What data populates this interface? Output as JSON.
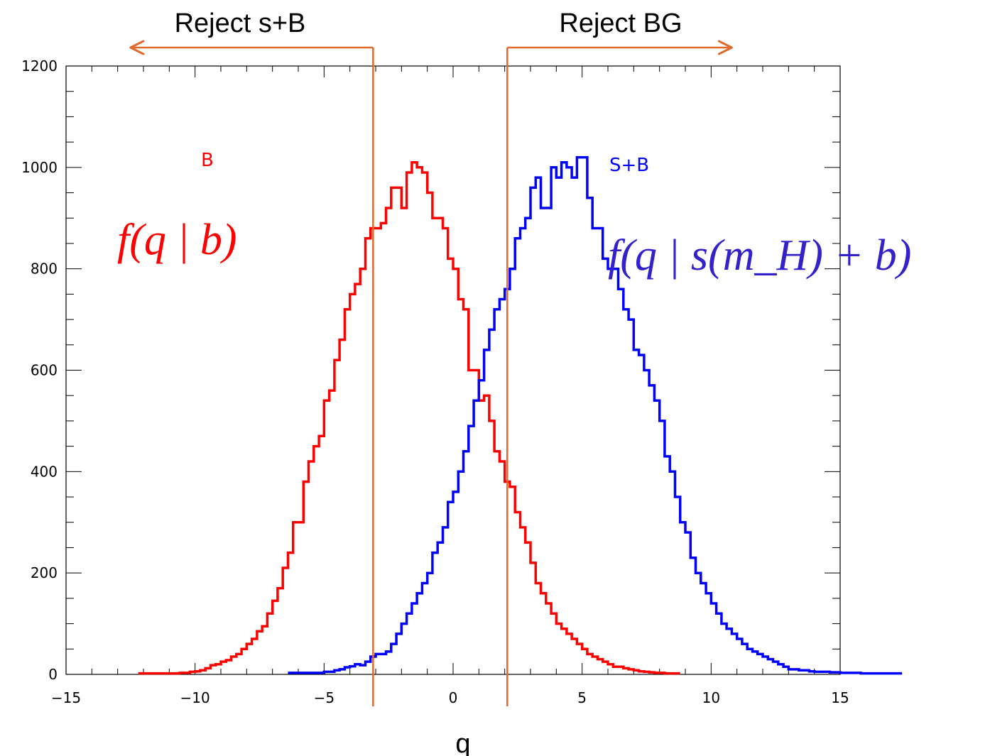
{
  "chart_data": {
    "type": "histogram",
    "xlabel": "q",
    "ylabel": "",
    "xlim": [
      -15,
      15
    ],
    "ylim": [
      0,
      1200
    ],
    "grid": false,
    "x_ticks": [
      -15,
      -10,
      -5,
      0,
      5,
      10,
      15
    ],
    "x_tick_labels": [
      "−15",
      "−10",
      "−5",
      "0",
      "5",
      "10",
      "15"
    ],
    "y_ticks": [
      0,
      200,
      400,
      600,
      800,
      1000,
      1200
    ],
    "y_tick_labels": [
      "0",
      "200",
      "400",
      "600",
      "800",
      "1000",
      "1200"
    ],
    "bin_width": 0.2,
    "series": [
      {
        "name": "B",
        "formula": "f(q | b)",
        "color": "#ff0000",
        "bin_start": -12.2,
        "values": [
          2,
          2,
          2,
          2,
          2,
          2,
          2,
          2,
          3,
          3,
          5,
          6,
          8,
          12,
          18,
          20,
          25,
          28,
          35,
          40,
          50,
          60,
          70,
          85,
          95,
          120,
          145,
          170,
          210,
          240,
          300,
          300,
          380,
          420,
          450,
          470,
          540,
          560,
          620,
          660,
          720,
          750,
          770,
          800,
          860,
          880,
          880,
          890,
          920,
          960,
          960,
          920,
          990,
          1010,
          1000,
          990,
          950,
          900,
          900,
          880,
          820,
          800,
          740,
          720,
          600,
          600,
          540,
          550,
          500,
          440,
          420,
          380,
          370,
          320,
          290,
          260,
          220,
          180,
          160,
          140,
          120,
          100,
          90,
          80,
          70,
          60,
          50,
          40,
          35,
          30,
          25,
          20,
          15,
          15,
          12,
          10,
          8,
          6,
          5,
          4,
          3,
          3,
          2,
          2,
          2
        ]
      },
      {
        "name": "S+B",
        "formula": "f(q | s(m_H) + b)",
        "color": "#0000ff",
        "bin_start": -6.4,
        "values": [
          3,
          3,
          3,
          3,
          3,
          3,
          3,
          5,
          5,
          8,
          10,
          14,
          16,
          20,
          18,
          25,
          35,
          40,
          40,
          45,
          60,
          80,
          100,
          120,
          140,
          160,
          180,
          200,
          240,
          260,
          290,
          340,
          360,
          400,
          440,
          490,
          540,
          580,
          640,
          680,
          720,
          740,
          760,
          800,
          860,
          880,
          900,
          960,
          980,
          920,
          920,
          1000,
          980,
          1010,
          1000,
          980,
          1020,
          1020,
          940,
          880,
          880,
          820,
          800,
          800,
          760,
          720,
          700,
          640,
          630,
          600,
          570,
          540,
          500,
          430,
          400,
          350,
          300,
          280,
          230,
          200,
          180,
          160,
          140,
          120,
          100,
          90,
          80,
          70,
          60,
          50,
          45,
          40,
          35,
          30,
          25,
          20,
          15,
          10,
          10,
          8,
          8,
          6,
          5,
          5,
          5,
          4,
          4,
          3,
          3,
          3,
          3,
          2,
          2,
          2,
          2,
          2,
          2,
          2,
          2
        ]
      }
    ],
    "annotations": [
      {
        "text": "Reject s+B",
        "cut_q": -3.1,
        "arrow_to_q": -12.5,
        "color": "#e06a2e"
      },
      {
        "text": "Reject BG",
        "cut_q": 2.1,
        "arrow_to_q": 10.8,
        "color": "#e06a2e"
      }
    ]
  }
}
